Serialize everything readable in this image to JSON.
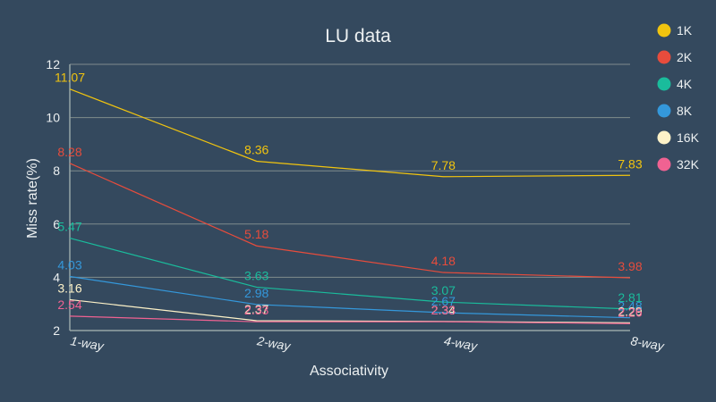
{
  "chart_data": {
    "type": "line",
    "title": "LU data",
    "xlabel": "Associativity",
    "ylabel": "Miss rate(%)",
    "categories": [
      "1-way",
      "2-way",
      "4-way",
      "8-way"
    ],
    "ylim": [
      2,
      12
    ],
    "yticks": [
      2,
      4,
      6,
      8,
      10,
      12
    ],
    "grid": true,
    "legend_position": "top-right",
    "series": [
      {
        "name": "1K",
        "color": "#f1c40f",
        "values": [
          11.07,
          8.36,
          7.78,
          7.83
        ]
      },
      {
        "name": "2K",
        "color": "#e74c3c",
        "values": [
          8.28,
          5.18,
          4.18,
          3.98
        ]
      },
      {
        "name": "4K",
        "color": "#1abc9c",
        "values": [
          5.47,
          3.63,
          3.07,
          2.81
        ]
      },
      {
        "name": "8K",
        "color": "#3498db",
        "values": [
          4.03,
          2.98,
          2.67,
          2.48
        ]
      },
      {
        "name": "16K",
        "color": "#fdf2c8",
        "values": [
          3.16,
          2.37,
          2.34,
          2.29
        ]
      },
      {
        "name": "32K",
        "color": "#f06292",
        "values": [
          2.54,
          2.33,
          2.33,
          2.26
        ]
      }
    ]
  }
}
